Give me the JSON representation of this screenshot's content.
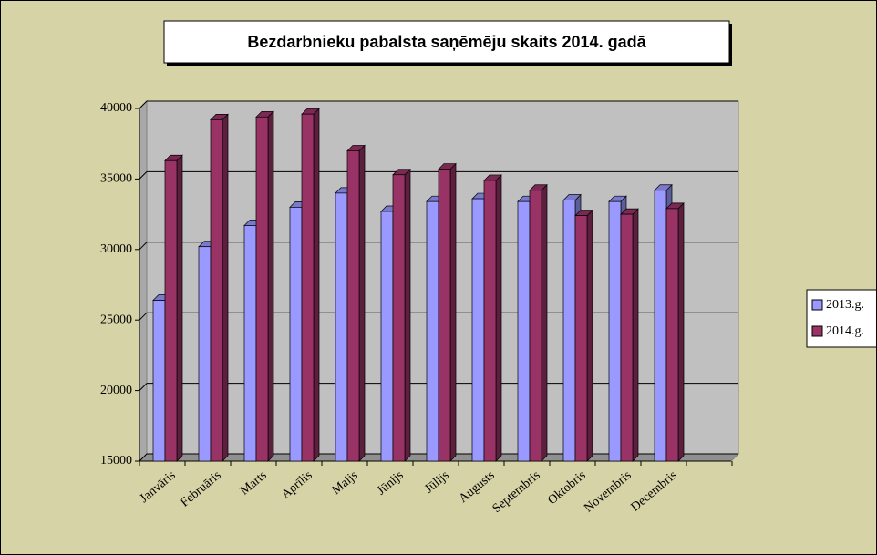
{
  "chart_data": {
    "type": "bar3d",
    "title": "Bezdarbnieku  pabalsta  saņēmēju  skaits 2014. gadā",
    "categories": [
      "Janvāris",
      "Februāris",
      "Marts",
      "Aprīlis",
      "Maijs",
      "Jūnijs",
      "Jūlijs",
      "Augusts",
      "Septembris",
      "Oktobris",
      "Novembris",
      "Decembris"
    ],
    "series": [
      {
        "name": "2013.g.",
        "color": "#9999ff",
        "values": [
          26400,
          30200,
          31700,
          33000,
          34000,
          32700,
          33400,
          33600,
          33400,
          33500,
          33400,
          34200
        ]
      },
      {
        "name": "2014.g.",
        "color": "#993366",
        "values": [
          36300,
          39200,
          39400,
          39600,
          37000,
          35300,
          35700,
          34900,
          34200,
          32400,
          32500,
          32900
        ]
      }
    ],
    "ylim": [
      15000,
      40000
    ],
    "yticks": [
      15000,
      20000,
      25000,
      30000,
      35000,
      40000
    ],
    "grid": true,
    "legend": "right"
  }
}
